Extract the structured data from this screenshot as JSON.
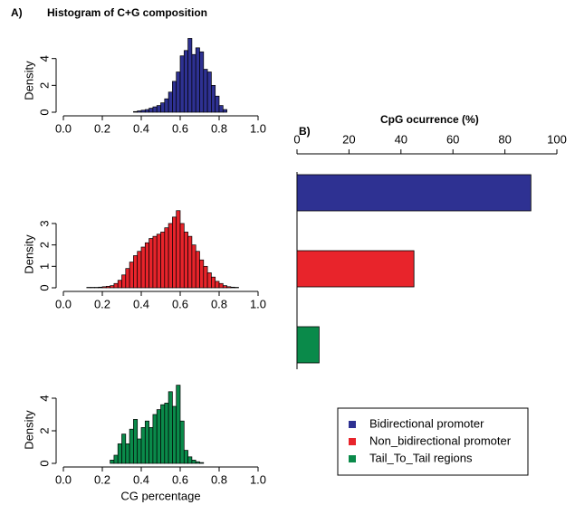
{
  "chart_data": [
    {
      "type": "histogram",
      "label": "A)",
      "title": "Histogram of C+G composition",
      "ylabel": "Density",
      "color": "#2e3192",
      "bins": [
        0.36,
        0.38,
        0.4,
        0.42,
        0.44,
        0.46,
        0.48,
        0.5,
        0.52,
        0.54,
        0.56,
        0.58,
        0.6,
        0.62,
        0.64,
        0.66,
        0.68,
        0.7,
        0.72,
        0.74,
        0.76,
        0.78,
        0.8,
        0.82,
        0.84
      ],
      "values": [
        0.05,
        0.1,
        0.15,
        0.2,
        0.3,
        0.4,
        0.5,
        0.7,
        1.0,
        1.5,
        2.3,
        3.0,
        4.2,
        4.6,
        5.5,
        4.3,
        4.8,
        4.5,
        3.2,
        3.0,
        2.0,
        1.2,
        0.5,
        0.2
      ],
      "xlim": [
        0,
        1
      ],
      "xticks": [
        {
          "value": 0,
          "label": "0.0"
        },
        0.2,
        0.4,
        0.6,
        0.8,
        {
          "value": 1,
          "label": "1.0"
        }
      ],
      "ylim": [
        0,
        5.8
      ],
      "yticks": [
        0,
        2,
        4
      ]
    },
    {
      "type": "histogram",
      "ylabel": "Density",
      "color": "#e8242b",
      "bins": [
        0.12,
        0.14,
        0.16,
        0.18,
        0.2,
        0.22,
        0.24,
        0.26,
        0.28,
        0.3,
        0.32,
        0.34,
        0.36,
        0.38,
        0.4,
        0.42,
        0.44,
        0.46,
        0.48,
        0.5,
        0.52,
        0.54,
        0.56,
        0.58,
        0.6,
        0.62,
        0.64,
        0.66,
        0.68,
        0.7,
        0.72,
        0.74,
        0.76,
        0.78,
        0.8,
        0.82,
        0.84,
        0.86,
        0.88,
        0.9
      ],
      "values": [
        0.02,
        0.02,
        0.02,
        0.03,
        0.05,
        0.07,
        0.1,
        0.2,
        0.35,
        0.6,
        0.9,
        1.2,
        1.5,
        1.7,
        1.9,
        2.1,
        2.3,
        2.4,
        2.5,
        2.6,
        2.8,
        3.0,
        3.3,
        3.6,
        3.0,
        2.6,
        2.4,
        2.0,
        1.7,
        1.3,
        1.0,
        0.7,
        0.5,
        0.3,
        0.2,
        0.1,
        0.05,
        0.03,
        0.02
      ],
      "xlim": [
        0,
        1
      ],
      "xticks": [
        {
          "value": 0,
          "label": "0.0"
        },
        0.2,
        0.4,
        0.6,
        0.8,
        {
          "value": 1,
          "label": "1.0"
        }
      ],
      "ylim": [
        0,
        3.8
      ],
      "yticks": [
        0,
        1,
        2,
        3
      ]
    },
    {
      "type": "histogram",
      "ylabel": "Density",
      "xlabel": "CG percentage",
      "color": "#0a8a4a",
      "bins": [
        0.24,
        0.26,
        0.28,
        0.3,
        0.32,
        0.34,
        0.36,
        0.38,
        0.4,
        0.42,
        0.44,
        0.46,
        0.48,
        0.5,
        0.52,
        0.54,
        0.56,
        0.58,
        0.6,
        0.62,
        0.64,
        0.66,
        0.68,
        0.7,
        0.72
      ],
      "values": [
        0.2,
        0.5,
        1.2,
        1.8,
        1.2,
        2.1,
        2.7,
        1.5,
        2.2,
        2.6,
        2.2,
        3.0,
        3.3,
        3.6,
        3.7,
        4.4,
        3.5,
        4.8,
        2.6,
        0.8,
        0.4,
        0.2,
        0.1,
        0.05
      ],
      "xlim": [
        0,
        1
      ],
      "xticks": [
        {
          "value": 0,
          "label": "0.0"
        },
        0.2,
        0.4,
        0.6,
        0.8,
        {
          "value": 1,
          "label": "1.0"
        }
      ],
      "ylim": [
        0,
        5
      ],
      "yticks": [
        0,
        2,
        4
      ]
    },
    {
      "type": "bar",
      "label": "B)",
      "title": "CpG ocurrence (%)",
      "categories": [
        "Bidirectional promoter",
        "Non_bidirectional promoter",
        "Tail_To_Tail regions"
      ],
      "values": [
        90,
        45,
        8.5
      ],
      "colors": [
        "#2e3192",
        "#e8242b",
        "#0a8a4a"
      ],
      "xlim": [
        0,
        100
      ],
      "xticks": [
        0,
        20,
        40,
        60,
        80,
        100
      ]
    }
  ]
}
